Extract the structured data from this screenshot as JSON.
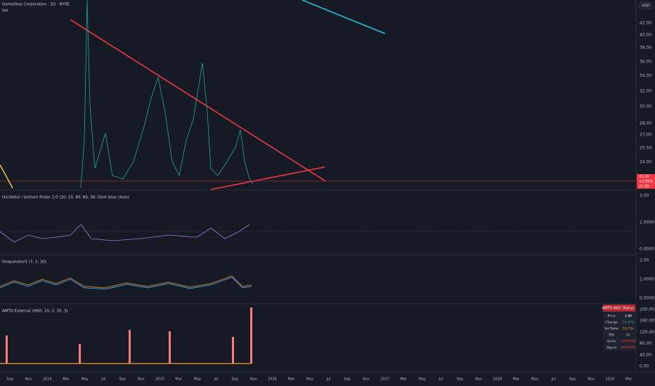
{
  "header": {
    "title": "GameStop Corporation · 1D · NYSE",
    "subtitle": "Vol",
    "currency": "USD"
  },
  "price_axis": {
    "labels": [
      "42.00",
      "40.00",
      "38.00",
      "36.00",
      "34.00",
      "32.00",
      "30.00",
      "28.00",
      "27.00",
      "25.50",
      "24.00"
    ],
    "badges": [
      "22.29",
      "+3.55%",
      "21.59"
    ]
  },
  "panes": [
    {
      "title": "Oscillator / bottom finder 2.0 (10, 10, 80, 60, 30, Dark blue close)",
      "axis": [
        "2.00",
        "1.0000",
        "0.0000"
      ]
    },
    {
      "title": "Deaponator5 (7, 2, 30)",
      "axis": [
        "2.00",
        "1.0000",
        "0.0000"
      ]
    },
    {
      "title": "AMTD External (HKD, 10, 2, 20, 3)",
      "axis": [
        "200.00",
        "160.00",
        "120.00",
        "80.00",
        "40.00",
        "0.00"
      ]
    }
  ],
  "table": {
    "header": [
      "AMTD HKD",
      "Status"
    ],
    "rows": [
      [
        "Price",
        "2.86"
      ],
      [
        "Change",
        "14.39%"
      ],
      [
        "Vol Ratio",
        "18.73x"
      ],
      [
        "RSI",
        "62"
      ],
      [
        "Score",
        "CAUTION"
      ],
      [
        "Signal",
        "EXTREME"
      ]
    ]
  },
  "time_axis": [
    "Sep",
    "Nov",
    "2024",
    "Mar",
    "May",
    "Jul",
    "Sep",
    "Nov",
    "2025",
    "Mar",
    "May",
    "Jul",
    "Sep",
    "Nov",
    "2026",
    "Mar",
    "May",
    "Jul",
    "Sep",
    "Nov",
    "2027",
    "Mar",
    "May",
    "Jul",
    "Sep",
    "Nov",
    "2028",
    "Mar",
    "May",
    "Jul",
    "Sep",
    "Nov",
    "2029",
    "Mar"
  ]
}
